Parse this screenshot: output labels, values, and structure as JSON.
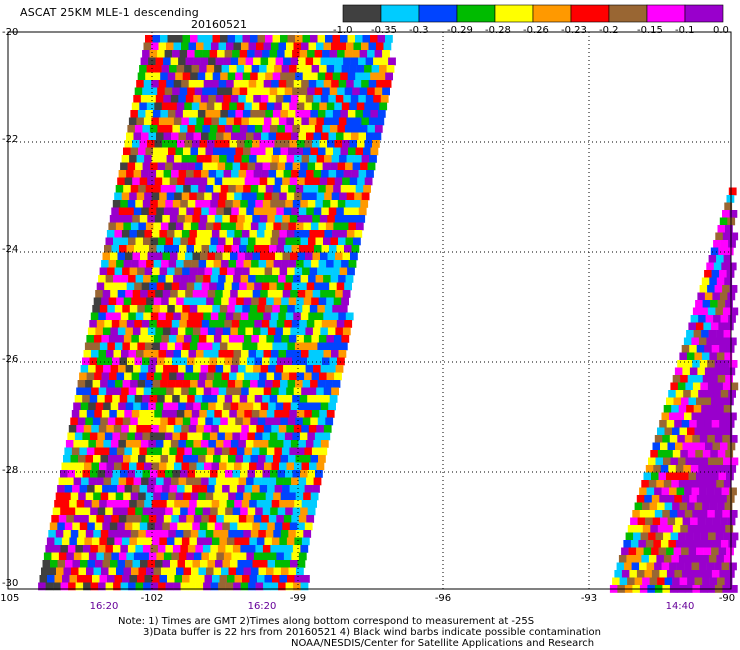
{
  "header": {
    "title": "ASCAT 25KM MLE-1 descending",
    "date": "20160521"
  },
  "colorbar": {
    "labels": [
      "-1.0",
      "-0.35",
      "-0.3",
      "-0.29",
      "-0.28",
      "-0.26",
      "-0.23",
      "-0.2",
      "-0.15",
      "-0.1",
      "0.0"
    ],
    "colors": [
      "#404040",
      "#00ccff",
      "#0044ff",
      "#00bb00",
      "#ffff00",
      "#ff9900",
      "#ff0000",
      "#996633",
      "#ff00ff",
      "#9900cc"
    ]
  },
  "axes": {
    "y_labels": [
      "-20",
      "-22",
      "-24",
      "-26",
      "-28",
      "-30"
    ],
    "x_labels": [
      "-105",
      "-102",
      "-99",
      "-96",
      "-93",
      "-90"
    ],
    "time_labels": [
      "16:20",
      "16:20",
      "14:40"
    ]
  },
  "notes": {
    "line1": "Note: 1) Times are GMT 2)Times along bottom correspond to measurement at -25S",
    "line2": "3)Data buffer is 22 hrs from 20160521 4) Black wind barbs indicate possible contamination",
    "line3": "NOAA/NESDIS/Center for Satellite Applications and Research"
  }
}
